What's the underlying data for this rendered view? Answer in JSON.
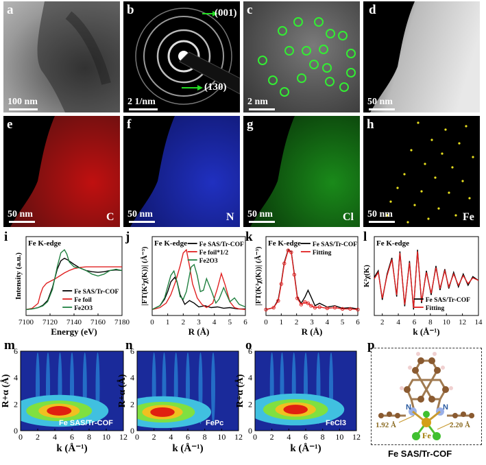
{
  "panels": {
    "a": {
      "letter": "a",
      "scale": "100 nm"
    },
    "b": {
      "letter": "b",
      "scale": "2 1/nm",
      "ann1": "(001)",
      "ann2": "(130)"
    },
    "c": {
      "letter": "c",
      "scale": "2 nm"
    },
    "d": {
      "letter": "d",
      "scale": "50 nm"
    },
    "e": {
      "letter": "e",
      "scale": "50 nm",
      "element": "C"
    },
    "f": {
      "letter": "f",
      "scale": "50 nm",
      "element": "N"
    },
    "g": {
      "letter": "g",
      "scale": "50 nm",
      "element": "Cl"
    },
    "h": {
      "letter": "h",
      "scale": "50 nm",
      "element": "Fe"
    },
    "i": {
      "letter": "i",
      "edge": "Fe K-edge"
    },
    "j": {
      "letter": "j",
      "edge": "Fe K-edge"
    },
    "k": {
      "letter": "k",
      "edge": "Fe K-edge"
    },
    "l": {
      "letter": "l",
      "edge": "Fe K-edge"
    },
    "m": {
      "letter": "m",
      "label": "Fe SAS/Tr-COF"
    },
    "n": {
      "letter": "n",
      "label": "FePc"
    },
    "o": {
      "letter": "o",
      "label": "FeCl3"
    },
    "p": {
      "letter": "p",
      "caption": "Fe SAS/Tr-COF",
      "n1": "N",
      "n2": "N",
      "fe": "Fe",
      "d1": "1.92 Å",
      "d2": "2.20 Å"
    }
  },
  "colors": {
    "c_map": "#e01010",
    "n_map": "#2030d0",
    "cl_map": "#20c020",
    "fe_map": "#e8e020",
    "sas": "#000000",
    "foil": "#e02020",
    "oxide": "#208040"
  },
  "chart_data": [
    {
      "panel": "i",
      "type": "line",
      "xlabel": "Energy (eV)",
      "ylabel": "Intensity (a.u.)",
      "xlim": [
        7100,
        7180
      ],
      "xticks": [
        7100,
        7120,
        7140,
        7160,
        7180
      ],
      "legend": [
        "Fe SAS/Tr-COF",
        "Fe foil",
        "Fe2O3"
      ],
      "legend_pos": "bottom-right",
      "series": [
        {
          "name": "Fe SAS/Tr-COF",
          "color": "#000000",
          "x": [
            7100,
            7105,
            7110,
            7114,
            7118,
            7122,
            7126,
            7129,
            7132,
            7135,
            7140,
            7145,
            7150,
            7155,
            7160,
            7165,
            7170,
            7175,
            7180
          ],
          "y": [
            0.02,
            0.03,
            0.05,
            0.09,
            0.17,
            0.38,
            0.68,
            0.82,
            0.86,
            0.83,
            0.76,
            0.7,
            0.66,
            0.64,
            0.63,
            0.64,
            0.66,
            0.67,
            0.66
          ]
        },
        {
          "name": "Fe foil",
          "color": "#e02020",
          "x": [
            7100,
            7105,
            7110,
            7112,
            7114,
            7117,
            7120,
            7124,
            7128,
            7132,
            7136,
            7140,
            7145,
            7150,
            7160,
            7170,
            7180
          ],
          "y": [
            0.02,
            0.04,
            0.12,
            0.27,
            0.38,
            0.45,
            0.48,
            0.52,
            0.57,
            0.62,
            0.66,
            0.69,
            0.71,
            0.72,
            0.72,
            0.72,
            0.72
          ]
        },
        {
          "name": "Fe2O3",
          "color": "#208040",
          "x": [
            7100,
            7105,
            7110,
            7114,
            7118,
            7122,
            7126,
            7129,
            7132,
            7134,
            7136,
            7140,
            7145,
            7150,
            7155,
            7160,
            7165,
            7170,
            7175,
            7180
          ],
          "y": [
            0.02,
            0.03,
            0.05,
            0.08,
            0.15,
            0.35,
            0.72,
            0.95,
            1.0,
            0.93,
            0.8,
            0.72,
            0.7,
            0.66,
            0.6,
            0.57,
            0.6,
            0.66,
            0.68,
            0.66
          ]
        }
      ]
    },
    {
      "panel": "j",
      "type": "line",
      "xlabel": "R (Å)",
      "ylabel": "|FT(K²χ(K))| (Å⁻³)",
      "xlim": [
        0,
        6
      ],
      "xticks": [
        0,
        1,
        2,
        3,
        4,
        5,
        6
      ],
      "legend": [
        "Fe SAS/Tr-COF",
        "Fe foil*1/2",
        "Fe2O3"
      ],
      "legend_pos": "top-right",
      "series": [
        {
          "name": "Fe SAS/Tr-COF",
          "color": "#000000",
          "x": [
            0,
            0.5,
            0.8,
            1.0,
            1.2,
            1.45,
            1.6,
            1.8,
            2.1,
            2.4,
            2.7,
            3.0,
            3.4,
            3.8,
            4.2,
            4.6,
            5.0,
            5.5,
            6.0
          ],
          "y": [
            0.02,
            0.08,
            0.18,
            0.3,
            0.45,
            0.52,
            0.45,
            0.25,
            0.1,
            0.16,
            0.12,
            0.06,
            0.08,
            0.05,
            0.06,
            0.04,
            0.05,
            0.03,
            0.03
          ]
        },
        {
          "name": "Fe foil*1/2",
          "color": "#e02020",
          "x": [
            0,
            0.5,
            0.9,
            1.2,
            1.5,
            1.8,
            2.0,
            2.2,
            2.4,
            2.6,
            2.9,
            3.2,
            3.5,
            3.9,
            4.2,
            4.45,
            4.7,
            5.0,
            5.3,
            5.6,
            6.0
          ],
          "y": [
            0.02,
            0.05,
            0.12,
            0.25,
            0.45,
            0.7,
            0.9,
            0.95,
            0.7,
            0.42,
            0.2,
            0.1,
            0.05,
            0.12,
            0.35,
            0.58,
            0.4,
            0.14,
            0.05,
            0.03,
            0.02
          ]
        },
        {
          "name": "Fe2O3",
          "color": "#208040",
          "x": [
            0,
            0.5,
            0.8,
            1.0,
            1.2,
            1.4,
            1.6,
            1.8,
            2.0,
            2.2,
            2.5,
            2.7,
            2.9,
            3.1,
            3.3,
            3.5,
            3.8,
            4.1,
            4.3,
            4.6,
            5.0,
            5.3,
            5.6,
            6.0
          ],
          "y": [
            0.02,
            0.08,
            0.2,
            0.38,
            0.55,
            0.62,
            0.45,
            0.22,
            0.18,
            0.3,
            0.68,
            0.72,
            0.55,
            0.3,
            0.32,
            0.5,
            0.32,
            0.12,
            0.18,
            0.36,
            0.14,
            0.2,
            0.1,
            0.06
          ]
        }
      ]
    },
    {
      "panel": "k",
      "type": "line",
      "xlabel": "R (Å)",
      "ylabel": "|FT(K²χ(K))| (Å⁻³)",
      "xlim": [
        0,
        6
      ],
      "xticks": [
        0,
        1,
        2,
        3,
        4,
        5,
        6
      ],
      "legend": [
        "Fe SAS/Tr-COF",
        "Fitting"
      ],
      "legend_pos": "top-right",
      "series": [
        {
          "name": "Fe SAS/Tr-COF",
          "color": "#000000",
          "x": [
            0,
            0.5,
            0.8,
            1.0,
            1.2,
            1.45,
            1.65,
            1.85,
            2.05,
            2.3,
            2.55,
            2.75,
            2.95,
            3.2,
            3.5,
            4.0,
            4.5,
            5.0,
            5.5,
            6.0
          ],
          "y": [
            0.02,
            0.05,
            0.18,
            0.45,
            0.78,
            0.98,
            0.95,
            0.6,
            0.22,
            0.12,
            0.22,
            0.33,
            0.22,
            0.08,
            0.12,
            0.06,
            0.08,
            0.04,
            0.05,
            0.03
          ]
        },
        {
          "name": "Fitting",
          "color": "#e02020",
          "x": [
            0,
            0.5,
            0.8,
            1.0,
            1.2,
            1.45,
            1.65,
            1.85,
            2.05,
            2.3,
            2.55,
            2.75,
            2.95,
            3.2,
            3.5,
            4.0,
            4.5,
            5.0,
            5.5,
            6.0
          ],
          "y": [
            0.02,
            0.05,
            0.16,
            0.43,
            0.76,
            0.97,
            0.94,
            0.58,
            0.2,
            0.1,
            0.14,
            0.12,
            0.08,
            0.05,
            0.06,
            0.04,
            0.05,
            0.03,
            0.03,
            0.02
          ]
        }
      ]
    },
    {
      "panel": "l",
      "type": "line",
      "xlabel": "k (Å⁻¹)",
      "ylabel": "K²χ(K)",
      "xlim": [
        1,
        14
      ],
      "xticks": [
        2,
        4,
        6,
        8,
        10,
        12,
        14
      ],
      "legend": [
        "Fe SAS/Tr-COF",
        "Fitting"
      ],
      "legend_pos": "bottom-right",
      "series": [
        {
          "name": "Fe SAS/Tr-COF",
          "color": "#000000",
          "x": [
            1,
            1.5,
            2,
            2.6,
            3.2,
            3.8,
            4.2,
            4.8,
            5.4,
            5.9,
            6.4,
            6.9,
            7.5,
            8.1,
            8.7,
            9.2,
            9.8,
            10.3,
            10.9,
            11.5,
            12.1,
            12.7,
            13.3,
            14
          ],
          "y": [
            0.1,
            0.3,
            -0.6,
            0.2,
            0.7,
            -0.5,
            0.9,
            -0.8,
            0.6,
            -0.9,
            0.95,
            -0.7,
            0.3,
            -0.45,
            0.45,
            -0.3,
            0.35,
            -0.25,
            0.25,
            -0.2,
            0.2,
            -0.15,
            0.12,
            0.0
          ]
        },
        {
          "name": "Fitting",
          "color": "#e02020",
          "x": [
            1,
            1.5,
            2,
            2.6,
            3.2,
            3.8,
            4.2,
            4.8,
            5.4,
            5.9,
            6.4,
            6.9,
            7.5,
            8.1,
            8.7,
            9.2,
            9.8,
            10.3,
            10.9,
            11.5,
            12.1,
            12.7,
            13.3,
            14
          ],
          "y": [
            0.05,
            0.25,
            -0.55,
            0.15,
            0.65,
            -0.45,
            0.85,
            -0.75,
            0.55,
            -0.85,
            0.9,
            -0.65,
            0.25,
            -0.4,
            0.4,
            -0.25,
            0.3,
            -0.2,
            0.2,
            -0.15,
            0.15,
            -0.1,
            0.08,
            0.0
          ]
        }
      ]
    },
    {
      "panel": "m",
      "type": "heatmap",
      "xlabel": "k (Å⁻¹)",
      "ylabel": "R+α (Å)",
      "xlim": [
        0,
        12
      ],
      "ylim": [
        0,
        6
      ],
      "xticks": [
        0,
        2,
        4,
        6,
        8,
        10,
        12
      ],
      "yticks": [
        0,
        2,
        4,
        6
      ],
      "peaks": [
        {
          "k": 4.5,
          "R": 1.5
        }
      ]
    },
    {
      "panel": "n",
      "type": "heatmap",
      "xlabel": "k (Å⁻¹)",
      "ylabel": "R+α (Å)",
      "xlim": [
        0,
        12
      ],
      "ylim": [
        0,
        6
      ],
      "xticks": [
        0,
        2,
        4,
        6,
        8,
        10,
        12
      ],
      "yticks": [
        0,
        2,
        4,
        6
      ],
      "peaks": [
        {
          "k": 3.0,
          "R": 1.4
        }
      ]
    },
    {
      "panel": "o",
      "type": "heatmap",
      "xlabel": "k (Å⁻¹)",
      "ylabel": "R+α (Å)",
      "xlim": [
        0,
        12
      ],
      "ylim": [
        0,
        6
      ],
      "xticks": [
        0,
        2,
        4,
        6,
        8,
        10,
        12
      ],
      "yticks": [
        0,
        2,
        4,
        6
      ],
      "peaks": [
        {
          "k": 4.8,
          "R": 1.6
        }
      ]
    }
  ]
}
